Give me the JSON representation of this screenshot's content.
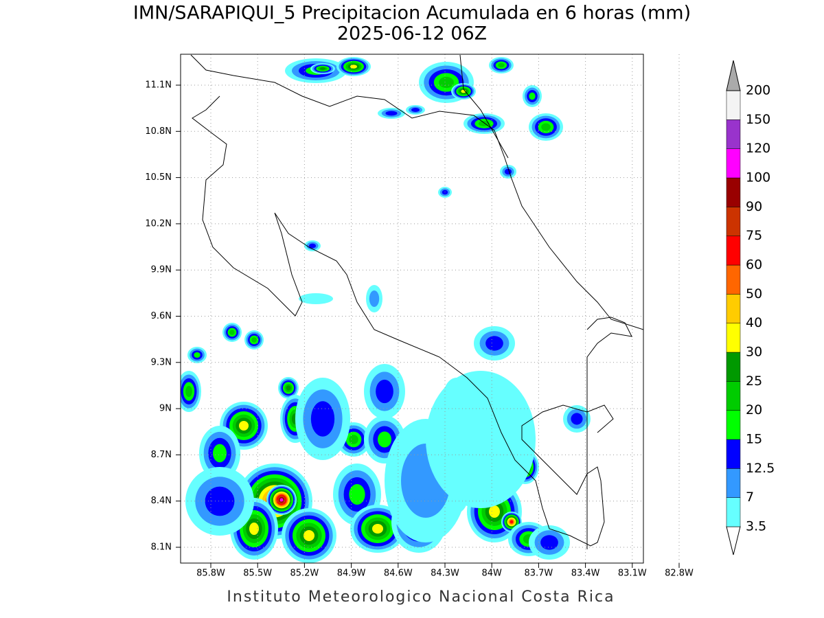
{
  "title": "IMN/SARAPIQUI_5 Precipitacion Acumulada en 6 horas (mm)",
  "subtitle": "2025-06-12 06Z",
  "map": {
    "lat_ticks": [
      "11.1N",
      "10.8N",
      "10.5N",
      "10.2N",
      "9.9N",
      "9.6N",
      "9.3N",
      "9N",
      "8.7N",
      "8.4N",
      "8.1N"
    ],
    "lon_ticks": [
      "85.8W",
      "85.5W",
      "85.2W",
      "84.9W",
      "84.6W",
      "84.3W",
      "84W",
      "83.7W",
      "83.4W",
      "83.1W",
      "82.8W"
    ]
  },
  "colorbar": {
    "levels": [
      3.5,
      7,
      12.5,
      15,
      20,
      25,
      30,
      40,
      50,
      60,
      75,
      90,
      100,
      120,
      150,
      200
    ],
    "colors": [
      "#66ffff",
      "#3399ff",
      "#0000ff",
      "#00ff00",
      "#00cc00",
      "#009900",
      "#ffff00",
      "#ffcc00",
      "#ff6600",
      "#ff0000",
      "#cc3300",
      "#990000",
      "#ff00ff",
      "#9933cc",
      "#f4f4f4"
    ],
    "under_color": "#ffffff",
    "over_color": "#aaaaaa"
  },
  "footer": "Instituto Meteorologico Nacional Costa Rica"
}
